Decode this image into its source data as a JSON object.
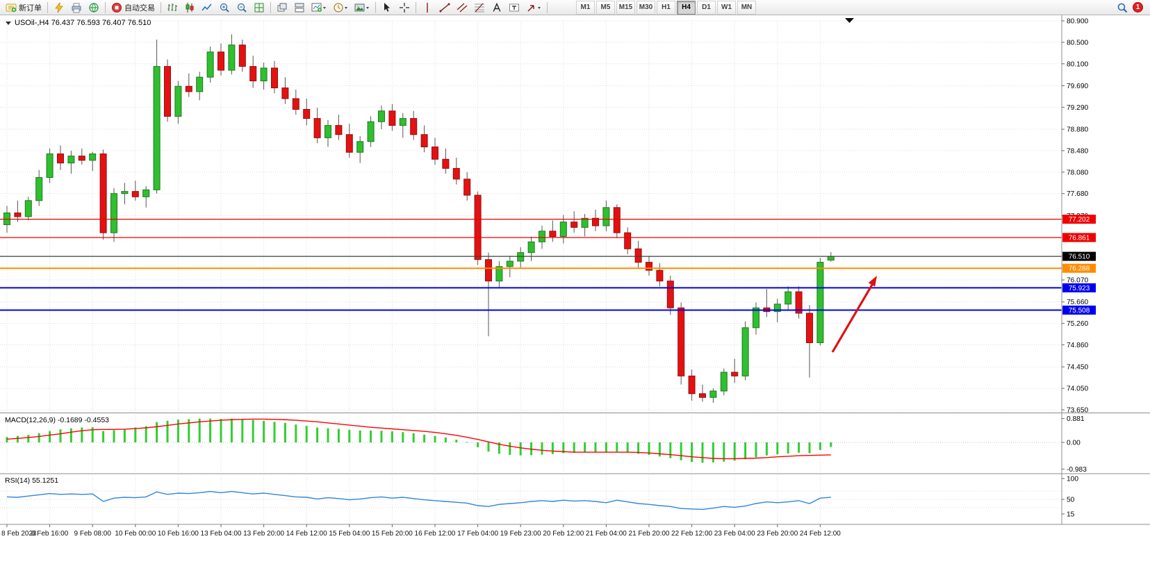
{
  "toolbar": {
    "new_order_label": "新订单",
    "autotrading_label": "自动交易",
    "timeframes": [
      "M1",
      "M5",
      "M15",
      "M30",
      "H1",
      "H4",
      "D1",
      "W1",
      "MN"
    ],
    "active_timeframe": "H4",
    "notification_count": "1"
  },
  "chart": {
    "symbol_title": "USOil-,H4",
    "ohlc_text": "76.437 76.593 76.407 76.510",
    "price_axis_labels": [
      "80.900",
      "80.500",
      "80.100",
      "79.690",
      "79.290",
      "78.880",
      "78.480",
      "78.080",
      "77.680",
      "77.270",
      "76.070",
      "75.660",
      "75.260",
      "74.860",
      "74.450",
      "74.050",
      "73.650"
    ],
    "price_axis_values": [
      80.9,
      80.5,
      80.1,
      79.69,
      79.29,
      78.88,
      78.48,
      78.08,
      77.68,
      77.27,
      76.07,
      75.66,
      75.26,
      74.86,
      74.45,
      74.05,
      73.65
    ],
    "levels": [
      {
        "name": "resistance-1",
        "value": 77.202,
        "label": "77.202",
        "color": "#ee0000",
        "tag": "#ee0000"
      },
      {
        "name": "resistance-2",
        "value": 76.861,
        "label": "76.861",
        "color": "#ee0000",
        "tag": "#ee0000"
      },
      {
        "name": "current-price",
        "value": 76.51,
        "label": "76.510",
        "color": "#3c3c3c",
        "tag": "#000000"
      },
      {
        "name": "pivot-line",
        "value": 76.288,
        "label": "76.288",
        "color": "#ff8c00",
        "tag": "#ff8c00"
      },
      {
        "name": "support-1",
        "value": 75.923,
        "label": "75.923",
        "color": "#0000ee",
        "tag": "#0000ee"
      },
      {
        "name": "support-2",
        "value": 75.508,
        "label": "75.508",
        "color": "#0000ee",
        "tag": "#0000ee"
      }
    ]
  },
  "macd": {
    "label": "MACD(12,26,9) -0.1689 -0.4553",
    "axis_labels": [
      "0.881",
      "0.00",
      "-0.983"
    ],
    "axis_values": [
      0.881,
      0,
      -0.983
    ]
  },
  "rsi": {
    "label": "RSI(14) 55.1251",
    "axis_labels": [
      "100",
      "50",
      "15"
    ],
    "axis_values": [
      100,
      50,
      15
    ]
  },
  "time_axis": [
    "8 Feb 2023",
    "8 Feb 16:00",
    "9 Feb 08:00",
    "10 Feb 00:00",
    "10 Feb 16:00",
    "13 Feb 04:00",
    "13 Feb 20:00",
    "14 Feb 12:00",
    "15 Feb 04:00",
    "15 Feb 20:00",
    "16 Feb 12:00",
    "17 Feb 04:00",
    "19 Feb 23:00",
    "20 Feb 12:00",
    "21 Feb 04:00",
    "21 Feb 20:00",
    "22 Feb 12:00",
    "23 Feb 04:00",
    "23 Feb 20:00",
    "24 Feb 12:00"
  ],
  "annotations": {
    "arrow_color": "#e01010"
  },
  "chart_data": {
    "type": "candlestick",
    "symbol": "USOil",
    "timeframe": "H4",
    "price_range": [
      73.65,
      80.9
    ],
    "candles_per_time_label": 4,
    "ohlc": [
      [
        77.1,
        77.45,
        76.95,
        77.32
      ],
      [
        77.32,
        77.55,
        77.15,
        77.25
      ],
      [
        77.25,
        77.62,
        77.18,
        77.55
      ],
      [
        77.55,
        78.12,
        77.45,
        77.98
      ],
      [
        77.98,
        78.52,
        77.88,
        78.42
      ],
      [
        78.42,
        78.58,
        78.12,
        78.25
      ],
      [
        78.25,
        78.48,
        78.05,
        78.38
      ],
      [
        78.38,
        78.52,
        78.22,
        78.3
      ],
      [
        78.3,
        78.46,
        78.1,
        78.42
      ],
      [
        78.42,
        78.5,
        76.82,
        76.95
      ],
      [
        76.95,
        77.78,
        76.78,
        77.68
      ],
      [
        77.68,
        77.88,
        77.48,
        77.72
      ],
      [
        77.72,
        77.92,
        77.55,
        77.62
      ],
      [
        77.62,
        77.82,
        77.42,
        77.75
      ],
      [
        77.75,
        80.55,
        77.68,
        80.05
      ],
      [
        80.05,
        80.18,
        79.02,
        79.12
      ],
      [
        79.12,
        79.78,
        78.98,
        79.68
      ],
      [
        79.68,
        79.92,
        79.48,
        79.58
      ],
      [
        79.58,
        79.95,
        79.42,
        79.85
      ],
      [
        79.85,
        80.42,
        79.75,
        80.32
      ],
      [
        80.32,
        80.48,
        79.88,
        79.98
      ],
      [
        79.98,
        80.65,
        79.9,
        80.45
      ],
      [
        80.45,
        80.55,
        79.95,
        80.05
      ],
      [
        80.05,
        80.25,
        79.65,
        79.78
      ],
      [
        79.78,
        80.12,
        79.62,
        80.02
      ],
      [
        80.02,
        80.15,
        79.55,
        79.65
      ],
      [
        79.65,
        79.85,
        79.35,
        79.45
      ],
      [
        79.45,
        79.62,
        79.15,
        79.25
      ],
      [
        79.25,
        79.45,
        78.95,
        79.08
      ],
      [
        79.08,
        79.28,
        78.62,
        78.72
      ],
      [
        78.72,
        79.05,
        78.55,
        78.95
      ],
      [
        78.95,
        79.15,
        78.68,
        78.78
      ],
      [
        78.78,
        78.98,
        78.35,
        78.45
      ],
      [
        78.45,
        78.75,
        78.25,
        78.65
      ],
      [
        78.65,
        79.12,
        78.55,
        79.02
      ],
      [
        79.02,
        79.32,
        78.88,
        79.22
      ],
      [
        79.22,
        79.35,
        78.85,
        78.95
      ],
      [
        78.95,
        79.18,
        78.72,
        79.08
      ],
      [
        79.08,
        79.22,
        78.68,
        78.78
      ],
      [
        78.78,
        78.95,
        78.45,
        78.55
      ],
      [
        78.55,
        78.72,
        78.22,
        78.32
      ],
      [
        78.32,
        78.52,
        78.05,
        78.15
      ],
      [
        78.15,
        78.35,
        77.85,
        77.95
      ],
      [
        77.95,
        78.08,
        77.55,
        77.65
      ],
      [
        77.65,
        77.72,
        76.35,
        76.45
      ],
      [
        76.45,
        76.58,
        75.02,
        76.05
      ],
      [
        76.05,
        76.42,
        75.92,
        76.32
      ],
      [
        76.32,
        76.52,
        76.12,
        76.42
      ],
      [
        76.42,
        76.68,
        76.3,
        76.58
      ],
      [
        76.58,
        76.88,
        76.42,
        76.78
      ],
      [
        76.78,
        77.08,
        76.65,
        76.98
      ],
      [
        76.98,
        77.18,
        76.78,
        76.88
      ],
      [
        76.88,
        77.28,
        76.75,
        77.15
      ],
      [
        77.15,
        77.35,
        76.95,
        77.05
      ],
      [
        77.05,
        77.3,
        76.88,
        77.22
      ],
      [
        77.22,
        77.38,
        76.98,
        77.08
      ],
      [
        77.08,
        77.55,
        76.98,
        77.42
      ],
      [
        77.42,
        77.48,
        76.85,
        76.95
      ],
      [
        76.95,
        77.05,
        76.55,
        76.65
      ],
      [
        76.65,
        76.8,
        76.3,
        76.4
      ],
      [
        76.4,
        76.52,
        76.15,
        76.25
      ],
      [
        76.25,
        76.38,
        75.95,
        76.05
      ],
      [
        76.05,
        76.15,
        75.42,
        75.55
      ],
      [
        75.55,
        75.65,
        74.12,
        74.28
      ],
      [
        74.28,
        74.4,
        73.82,
        73.95
      ],
      [
        73.95,
        74.12,
        73.8,
        73.88
      ],
      [
        73.88,
        74.05,
        73.78,
        74.0
      ],
      [
        74.0,
        74.42,
        73.92,
        74.35
      ],
      [
        74.35,
        74.6,
        74.15,
        74.28
      ],
      [
        74.28,
        75.3,
        74.2,
        75.18
      ],
      [
        75.18,
        75.65,
        75.05,
        75.55
      ],
      [
        75.55,
        75.9,
        75.38,
        75.48
      ],
      [
        75.48,
        75.72,
        75.28,
        75.62
      ],
      [
        75.62,
        75.95,
        75.5,
        75.85
      ],
      [
        75.85,
        75.95,
        75.35,
        75.45
      ],
      [
        75.45,
        75.6,
        74.25,
        74.9
      ],
      [
        74.9,
        76.48,
        74.85,
        76.4
      ],
      [
        76.44,
        76.59,
        76.41,
        76.51
      ]
    ],
    "indicators": {
      "macd": {
        "params": "12,26,9",
        "last_histogram": -0.1689,
        "last_signal": -0.4553,
        "range": [
          -0.983,
          0.881
        ],
        "histogram": [
          0.2,
          0.24,
          0.28,
          0.34,
          0.42,
          0.48,
          0.52,
          0.55,
          0.56,
          0.42,
          0.45,
          0.5,
          0.55,
          0.6,
          0.75,
          0.8,
          0.84,
          0.86,
          0.88,
          0.88,
          0.87,
          0.88,
          0.86,
          0.83,
          0.8,
          0.76,
          0.72,
          0.66,
          0.61,
          0.55,
          0.52,
          0.5,
          0.46,
          0.44,
          0.44,
          0.43,
          0.41,
          0.38,
          0.34,
          0.29,
          0.24,
          0.18,
          0.1,
          0.02,
          -0.18,
          -0.34,
          -0.42,
          -0.46,
          -0.48,
          -0.47,
          -0.45,
          -0.43,
          -0.4,
          -0.38,
          -0.36,
          -0.35,
          -0.36,
          -0.34,
          -0.37,
          -0.42,
          -0.46,
          -0.52,
          -0.58,
          -0.66,
          -0.72,
          -0.75,
          -0.74,
          -0.71,
          -0.67,
          -0.62,
          -0.55,
          -0.48,
          -0.44,
          -0.41,
          -0.38,
          -0.4,
          -0.28,
          -0.17
        ],
        "signal": [
          0.12,
          0.15,
          0.18,
          0.22,
          0.27,
          0.32,
          0.38,
          0.43,
          0.47,
          0.48,
          0.48,
          0.49,
          0.51,
          0.54,
          0.58,
          0.63,
          0.68,
          0.72,
          0.76,
          0.79,
          0.82,
          0.84,
          0.85,
          0.86,
          0.86,
          0.85,
          0.84,
          0.82,
          0.79,
          0.76,
          0.72,
          0.68,
          0.64,
          0.6,
          0.56,
          0.53,
          0.5,
          0.47,
          0.44,
          0.41,
          0.37,
          0.32,
          0.26,
          0.19,
          0.11,
          0.02,
          -0.07,
          -0.14,
          -0.2,
          -0.25,
          -0.29,
          -0.32,
          -0.34,
          -0.36,
          -0.36,
          -0.36,
          -0.36,
          -0.36,
          -0.36,
          -0.37,
          -0.39,
          -0.42,
          -0.45,
          -0.49,
          -0.53,
          -0.56,
          -0.59,
          -0.6,
          -0.6,
          -0.59,
          -0.58,
          -0.56,
          -0.53,
          -0.51,
          -0.49,
          -0.48,
          -0.47,
          -0.46
        ]
      },
      "rsi": {
        "params": "14",
        "last": 55.1251,
        "values": [
          56,
          55,
          58,
          61,
          64,
          62,
          63,
          62,
          63,
          45,
          53,
          55,
          54,
          56,
          68,
          62,
          65,
          64,
          66,
          69,
          66,
          69,
          66,
          63,
          65,
          62,
          59,
          56,
          55,
          51,
          54,
          52,
          49,
          51,
          54,
          56,
          53,
          55,
          52,
          49,
          47,
          45,
          43,
          41,
          35,
          33,
          38,
          40,
          42,
          45,
          47,
          45,
          48,
          46,
          47,
          45,
          42,
          48,
          44,
          40,
          38,
          35,
          33,
          28,
          27,
          26,
          29,
          33,
          31,
          34,
          40,
          44,
          42,
          44,
          47,
          40,
          53,
          55.13
        ]
      }
    },
    "colors": {
      "up": "#2fbf2f",
      "up_border": "#1e7a1e",
      "down": "#e31212",
      "down_border": "#9b0b0b",
      "wick": "#555555",
      "macd_hist": "#32cd32",
      "macd_signal": "#ff0000",
      "rsi_line": "#2e86de"
    }
  }
}
